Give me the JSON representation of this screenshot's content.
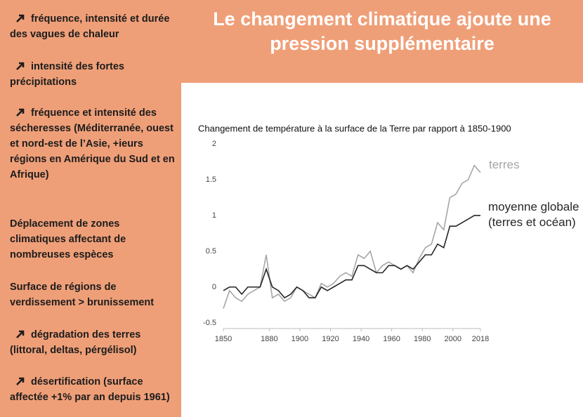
{
  "sidebar": {
    "items": [
      "fréquence, intensité et durée des vagues de chaleur",
      "intensité des fortes précipitations",
      "fréquence et intensité des sécheresses (Méditerranée, ouest et nord-est de l’Asie, +ieurs régions en Amérique du Sud et en Afrique)",
      "Déplacement de zones climatiques affectant de nombreuses espèces",
      "Surface de régions de verdissement > brunissement",
      "dégradation des terres (littoral, deltas, pérgélisol)",
      "désertification (surface affectée +1% par an depuis 1961)"
    ]
  },
  "header": {
    "title": "Le changement climatique ajoute une pression supplémentaire"
  },
  "chart_data": {
    "type": "line",
    "title": "Changement de température à la surface de la Terre par rapport à 1850-1900",
    "x": [
      1850,
      1854,
      1858,
      1862,
      1866,
      1870,
      1874,
      1878,
      1882,
      1886,
      1890,
      1894,
      1898,
      1902,
      1906,
      1910,
      1914,
      1918,
      1922,
      1926,
      1930,
      1934,
      1938,
      1942,
      1946,
      1950,
      1954,
      1958,
      1962,
      1966,
      1970,
      1974,
      1978,
      1982,
      1986,
      1990,
      1994,
      1998,
      2002,
      2006,
      2010,
      2014,
      2018
    ],
    "series": [
      {
        "name": "terres",
        "color": "#a6a6a6",
        "values": [
          -0.3,
          -0.05,
          -0.15,
          -0.2,
          -0.1,
          -0.05,
          0.0,
          0.45,
          -0.15,
          -0.1,
          -0.2,
          -0.15,
          0.0,
          -0.05,
          -0.1,
          -0.15,
          0.05,
          0.0,
          0.05,
          0.15,
          0.2,
          0.15,
          0.45,
          0.4,
          0.5,
          0.2,
          0.3,
          0.35,
          0.3,
          0.25,
          0.3,
          0.2,
          0.4,
          0.55,
          0.6,
          0.9,
          0.8,
          1.25,
          1.3,
          1.45,
          1.5,
          1.7,
          1.6
        ]
      },
      {
        "name": "moyenne globale (terres et océan)",
        "color": "#262626",
        "values": [
          -0.05,
          0.0,
          0.0,
          -0.1,
          0.0,
          0.0,
          0.0,
          0.25,
          0.0,
          -0.05,
          -0.15,
          -0.1,
          0.0,
          -0.05,
          -0.15,
          -0.15,
          0.0,
          -0.05,
          0.0,
          0.05,
          0.1,
          0.1,
          0.3,
          0.3,
          0.25,
          0.2,
          0.2,
          0.3,
          0.3,
          0.25,
          0.3,
          0.25,
          0.35,
          0.45,
          0.45,
          0.6,
          0.55,
          0.85,
          0.85,
          0.9,
          0.95,
          1.0,
          1.0
        ]
      }
    ],
    "xlim": [
      1850,
      2018
    ],
    "xticks": [
      1850,
      1880,
      1900,
      1920,
      1940,
      1960,
      1980,
      2000,
      2018
    ],
    "ylim": [
      -0.58,
      2
    ],
    "yticks": [
      -0.5,
      0,
      0.5,
      1,
      1.5,
      2
    ]
  }
}
